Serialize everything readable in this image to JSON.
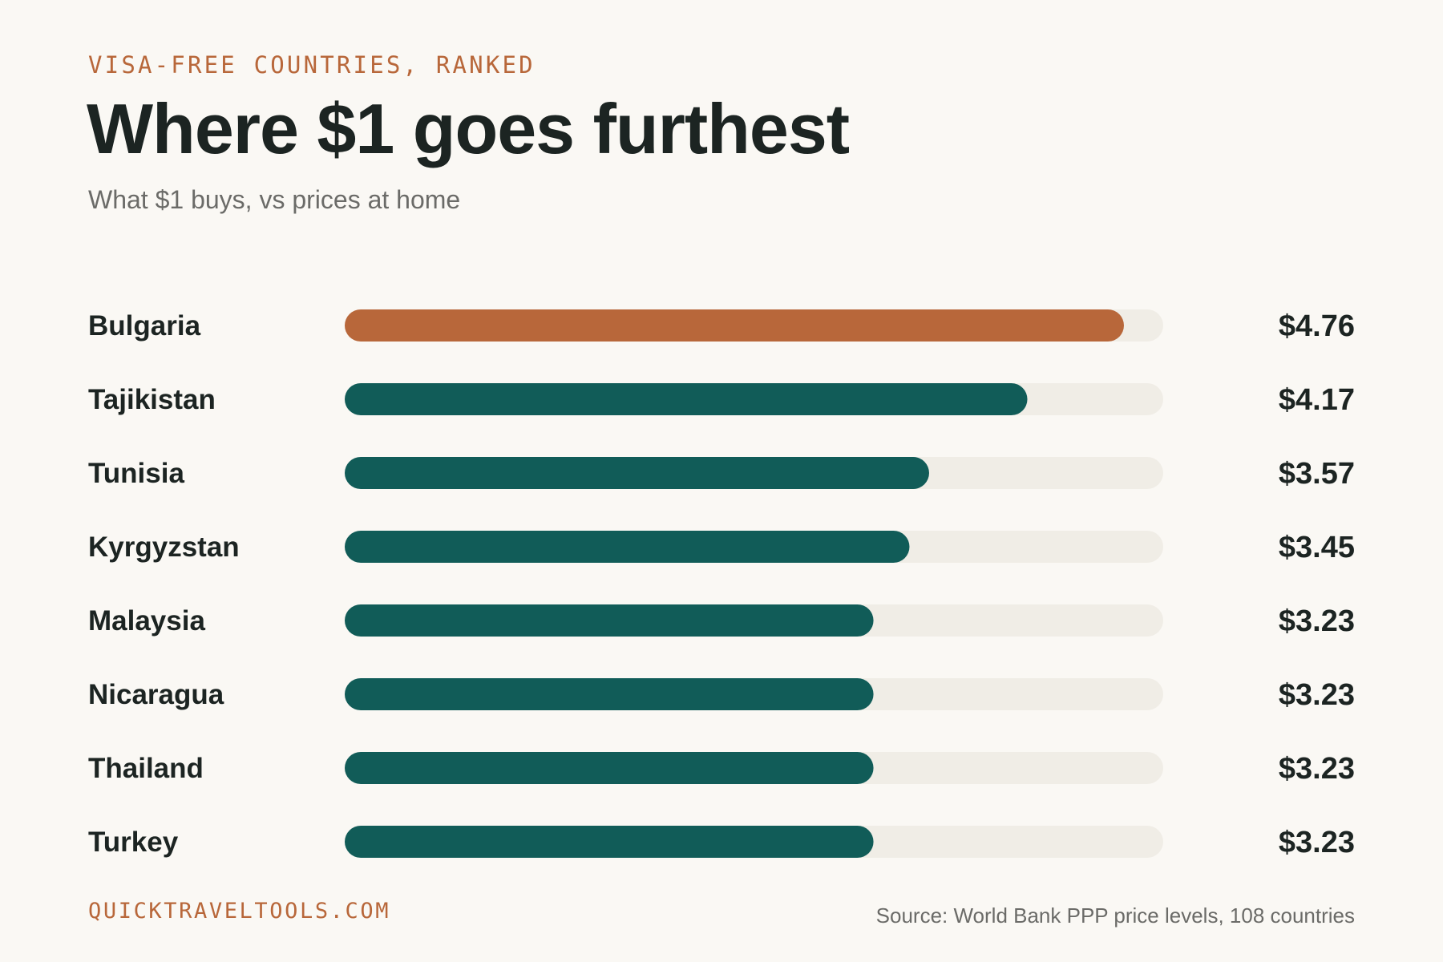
{
  "header": {
    "kicker": "VISA-FREE COUNTRIES, RANKED",
    "title": "Where $1 goes furthest",
    "subtitle": "What $1 buys, vs prices at home"
  },
  "footer": {
    "brand": "QUICKTRAVELTOOLS.COM",
    "source": "Source: World Bank PPP price levels, 108 countries"
  },
  "colors": {
    "background": "#faf8f4",
    "highlight": "#b8673a",
    "bar": "#115c58",
    "track": "#f0ede6",
    "text": "#1c2422",
    "muted": "#6b6b68"
  },
  "chart_data": {
    "type": "bar",
    "orientation": "horizontal",
    "categories": [
      "Bulgaria",
      "Tajikistan",
      "Tunisia",
      "Kyrgyzstan",
      "Malaysia",
      "Nicaragua",
      "Thailand",
      "Turkey"
    ],
    "values": [
      4.76,
      4.17,
      3.57,
      3.45,
      3.23,
      3.23,
      3.23,
      3.23
    ],
    "value_labels": [
      "$4.76",
      "$4.17",
      "$3.57",
      "$3.45",
      "$3.23",
      "$3.23",
      "$3.23",
      "$3.23"
    ],
    "highlight_index": 0,
    "xlim": [
      0,
      5
    ],
    "grid": false,
    "legend": "none"
  }
}
